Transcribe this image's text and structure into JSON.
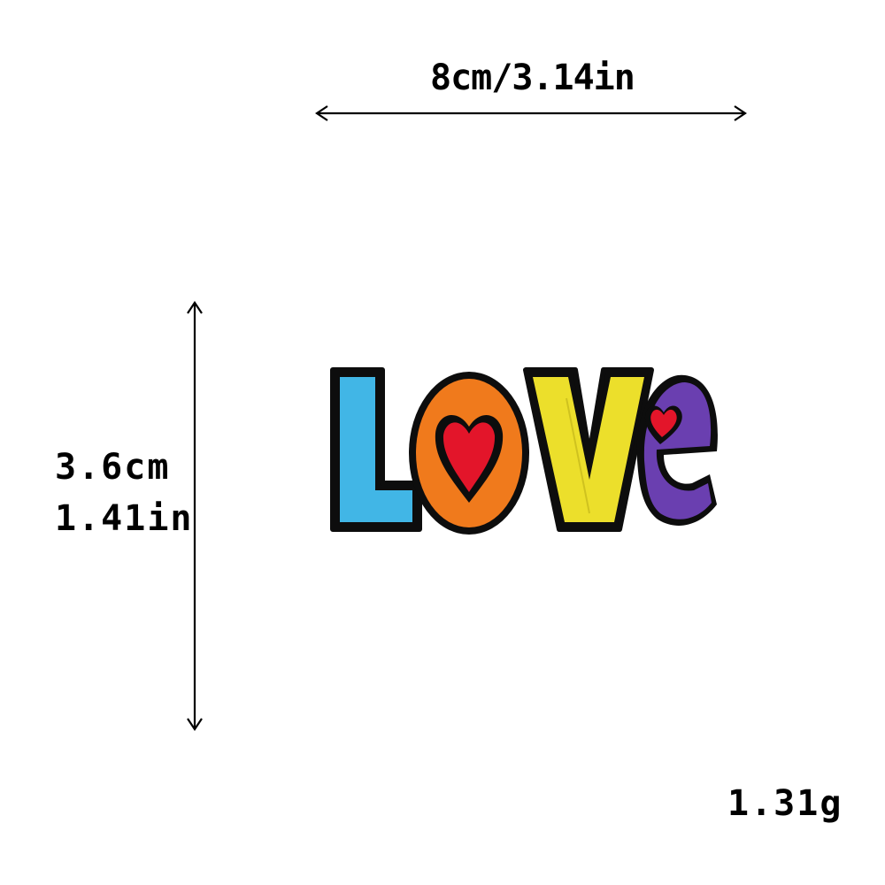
{
  "dimensions": {
    "width_label": "8cm/3.14in",
    "height_label_cm": "3.6cm",
    "height_label_in": "1.41in",
    "weight_label": "1.31g"
  },
  "patch": {
    "word": "LOVE",
    "colors": {
      "outline": "#0d0d0d",
      "L": "#41b6e6",
      "O": "#f07a1c",
      "V": "#ecdf2b",
      "E": "#6a3fb0",
      "heart": "#e3152a"
    },
    "icons": [
      "heart-icon",
      "heart-icon"
    ]
  }
}
